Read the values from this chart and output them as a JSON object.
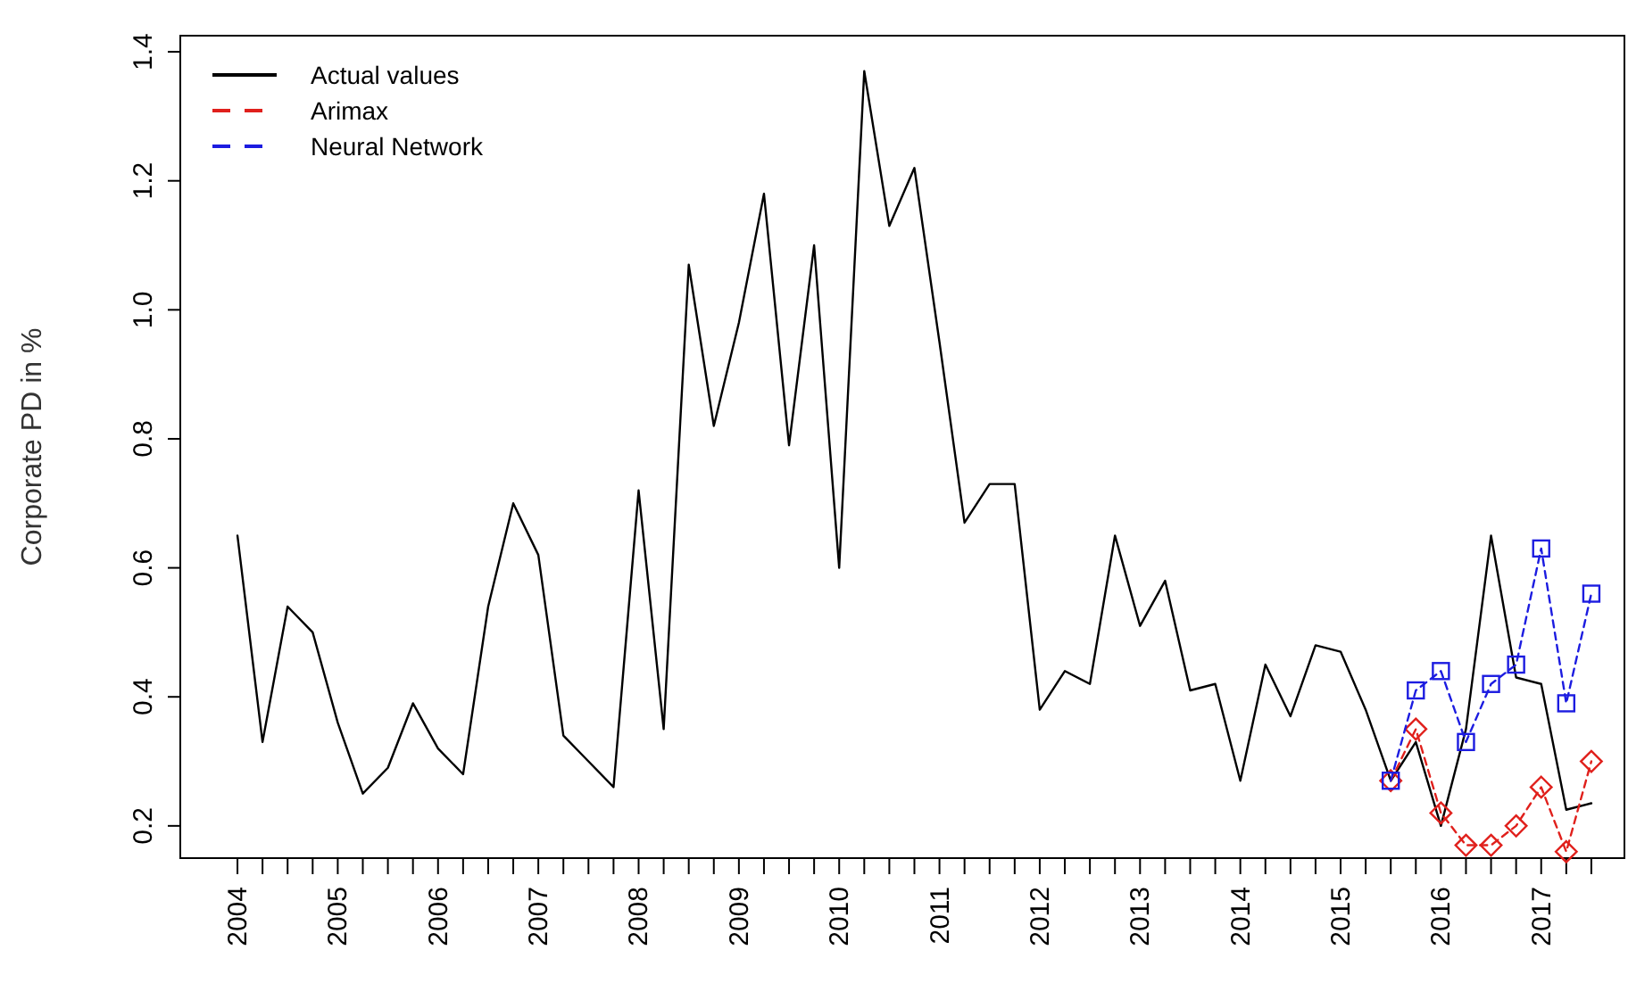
{
  "chart_data": {
    "type": "line",
    "ylabel": "Corporate PD in %",
    "xlim": [
      2003.43,
      2017.83
    ],
    "ylim": [
      0.15,
      1.425
    ],
    "yticks": [
      0.2,
      0.4,
      0.6,
      0.8,
      {
        "value": 1,
        "label": "1.0"
      },
      1.2,
      1.4
    ],
    "xticks": [
      2004,
      {
        "value": 2004.25,
        "label": null
      },
      {
        "value": 2004.5,
        "label": null
      },
      {
        "value": 2004.75,
        "label": null
      },
      2005,
      {
        "value": 2005.25,
        "label": null
      },
      {
        "value": 2005.5,
        "label": null
      },
      {
        "value": 2005.75,
        "label": null
      },
      2006,
      {
        "value": 2006.25,
        "label": null
      },
      {
        "value": 2006.5,
        "label": null
      },
      {
        "value": 2006.75,
        "label": null
      },
      2007,
      {
        "value": 2007.25,
        "label": null
      },
      {
        "value": 2007.5,
        "label": null
      },
      {
        "value": 2007.75,
        "label": null
      },
      2008,
      {
        "value": 2008.25,
        "label": null
      },
      {
        "value": 2008.5,
        "label": null
      },
      {
        "value": 2008.75,
        "label": null
      },
      2009,
      {
        "value": 2009.25,
        "label": null
      },
      {
        "value": 2009.5,
        "label": null
      },
      {
        "value": 2009.75,
        "label": null
      },
      2010,
      {
        "value": 2010.25,
        "label": null
      },
      {
        "value": 2010.5,
        "label": null
      },
      {
        "value": 2010.75,
        "label": null
      },
      2011,
      {
        "value": 2011.25,
        "label": null
      },
      {
        "value": 2011.5,
        "label": null
      },
      {
        "value": 2011.75,
        "label": null
      },
      2012,
      {
        "value": 2012.25,
        "label": null
      },
      {
        "value": 2012.5,
        "label": null
      },
      {
        "value": 2012.75,
        "label": null
      },
      2013,
      {
        "value": 2013.25,
        "label": null
      },
      {
        "value": 2013.5,
        "label": null
      },
      {
        "value": 2013.75,
        "label": null
      },
      2014,
      {
        "value": 2014.25,
        "label": null
      },
      {
        "value": 2014.5,
        "label": null
      },
      {
        "value": 2014.75,
        "label": null
      },
      2015,
      {
        "value": 2015.25,
        "label": null
      },
      {
        "value": 2015.5,
        "label": null
      },
      {
        "value": 2015.75,
        "label": null
      },
      2016,
      {
        "value": 2016.25,
        "label": null
      },
      {
        "value": 2016.5,
        "label": null
      },
      {
        "value": 2016.75,
        "label": null
      },
      2017,
      {
        "value": 2017.25,
        "label": null
      },
      {
        "value": 2017.5,
        "label": null
      }
    ],
    "x": [
      2004,
      2004.25,
      2004.5,
      2004.75,
      2005,
      2005.25,
      2005.5,
      2005.75,
      2006,
      2006.25,
      2006.5,
      2006.75,
      2007,
      2007.25,
      2007.5,
      2007.75,
      2008,
      2008.25,
      2008.5,
      2008.75,
      2009,
      2009.25,
      2009.5,
      2009.75,
      2010,
      2010.25,
      2010.5,
      2010.75,
      2011,
      2011.25,
      2011.5,
      2011.75,
      2012,
      2012.25,
      2012.5,
      2012.75,
      2013,
      2013.25,
      2013.5,
      2013.75,
      2014,
      2014.25,
      2014.5,
      2014.75,
      2015,
      2015.25,
      2015.5,
      2015.75,
      2016,
      2016.25,
      2016.5,
      2016.75,
      2017,
      2017.25,
      2017.5
    ],
    "legend": "top left",
    "grid": false,
    "series": [
      {
        "name": "Actual values",
        "color": "#000000",
        "marker": "none",
        "line_style": "solid",
        "values": [
          0.65,
          0.33,
          0.54,
          0.5,
          0.36,
          0.25,
          0.29,
          0.39,
          0.32,
          0.28,
          0.54,
          0.7,
          0.62,
          0.34,
          0.3,
          0.26,
          0.72,
          0.35,
          1.07,
          0.82,
          0.98,
          1.18,
          0.79,
          1.1,
          0.6,
          1.37,
          1.13,
          1.22,
          0.95,
          0.67,
          0.73,
          0.73,
          0.38,
          0.44,
          0.42,
          0.65,
          0.51,
          0.58,
          0.41,
          0.42,
          0.27,
          0.45,
          0.37,
          0.48,
          0.47,
          0.38,
          0.27,
          0.33,
          0.2,
          0.35,
          0.65,
          0.43,
          0.42,
          0.225,
          0.235
        ]
      },
      {
        "name": "Arimax",
        "color": "#e0201c",
        "marker": "diamond",
        "line_style": "dashed",
        "x": [
          2015.5,
          2015.75,
          2016,
          2016.25,
          2016.5,
          2016.75,
          2017,
          2017.25,
          2017.5
        ],
        "values": [
          0.27,
          0.35,
          0.22,
          0.17,
          0.17,
          0.2,
          0.26,
          0.16,
          0.3
        ]
      },
      {
        "name": "Neural Network",
        "color": "#1c1ce0",
        "marker": "square",
        "line_style": "dashed",
        "x": [
          2015.5,
          2015.75,
          2016,
          2016.25,
          2016.5,
          2016.75,
          2017,
          2017.25,
          2017.5
        ],
        "values": [
          0.27,
          0.41,
          0.44,
          0.33,
          0.42,
          0.45,
          0.63,
          0.39,
          0.56
        ]
      }
    ]
  }
}
